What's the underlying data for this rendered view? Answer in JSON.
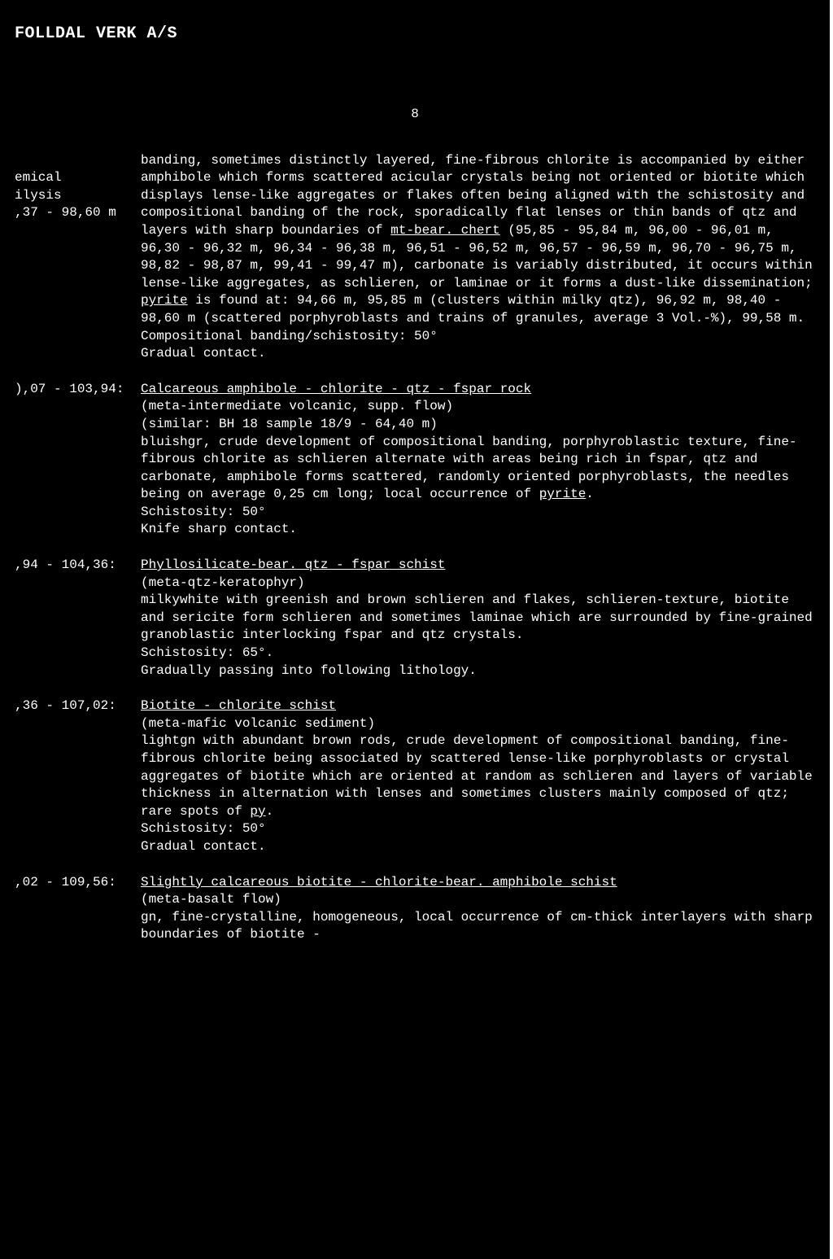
{
  "header": "FOLLDAL VERK A/S",
  "page_number": "8",
  "entries": [
    {
      "left": "\nemical\nilysis\n,37 - 98,60 m",
      "body": [
        {
          "text": "banding, sometimes distinctly layered, fine-fibrous chlorite is accompanied by either amphibole which forms scattered acicular crystals being not oriented or biotite which displays lense-like aggregates or flakes often being aligned with the schistosity and compositional banding of the rock, sporadically flat lenses or thin bands of qtz and layers with sharp boundaries of "
        },
        {
          "text": "mt-bear. chert",
          "u": true
        },
        {
          "text": " (95,85 - 95,84 m, 96,00 - 96,01 m, 96,30 - 96,32 m, 96,34 - 96,38 m, 96,51 - 96,52 m, 96,57 - 96,59 m, 96,70 - 96,75 m, 98,82 - 98,87 m, 99,41 - 99,47 m), carbonate is variably distributed, it occurs within lense-like aggregates, as schlieren, or laminae or it forms a dust-like dissemination; "
        },
        {
          "text": "pyrite",
          "u": true
        },
        {
          "text": " is found at: 94,66 m, 95,85 m (clusters within milky qtz), 96,92 m, 98,40 - 98,60 m (scattered porphyroblasts and trains of granules, average 3 Vol.-%), 99,58 m.\nCompositional banding/schistosity: 50°\nGradual contact."
        }
      ]
    },
    {
      "left": "),07 - 103,94:",
      "body": [
        {
          "text": "Calcareous amphibole - chlorite - qtz - fspar rock",
          "u": true
        },
        {
          "text": "\n(meta-intermediate volcanic, supp. flow)\n(similar: BH 18 sample 18/9 - 64,40 m)\nbluishgr, crude development of compositional banding, porphyroblastic texture, fine-fibrous chlorite as schlieren alternate with areas being rich in fspar, qtz and carbonate, amphibole forms scattered, randomly oriented porphyroblasts, the needles being on average 0,25 cm long; local occurrence of "
        },
        {
          "text": "pyrite",
          "u": true
        },
        {
          "text": ".\nSchistosity: 50°\nKnife sharp contact."
        }
      ]
    },
    {
      "left": ",94 - 104,36:",
      "body": [
        {
          "text": "Phyllosilicate-bear. qtz - fspar schist",
          "u": true
        },
        {
          "text": "\n(meta-qtz-keratophyr)\nmilkywhite with greenish and brown schlieren and flakes, schlieren-texture, biotite and sericite form schlieren and sometimes laminae which are surrounded by fine-grained granoblastic interlocking fspar and qtz crystals.\nSchistosity: 65°.\nGradually passing into following lithology."
        }
      ]
    },
    {
      "left": ",36 - 107,02:",
      "body": [
        {
          "text": "Biotite - chlorite schist",
          "u": true
        },
        {
          "text": "\n(meta-mafic volcanic sediment)\nlightgn with abundant brown rods, crude development of compositional banding, fine-fibrous chlorite being associated by scattered lense-like porphyroblasts or crystal aggregates of biotite which are oriented at random as schlieren and layers of variable thickness in alternation with lenses and sometimes clusters mainly composed of qtz; rare spots of "
        },
        {
          "text": "py",
          "u": true
        },
        {
          "text": ".\nSchistosity: 50°\nGradual contact."
        }
      ]
    },
    {
      "left": ",02 - 109,56:",
      "body": [
        {
          "text": "Slightly calcareous biotite - chlorite-bear. amphibole schist",
          "u": true
        },
        {
          "text": "\n(meta-basalt flow)\ngn, fine-crystalline, homogeneous, local occurrence of cm-thick interlayers with sharp boundaries of biotite -"
        }
      ]
    }
  ]
}
